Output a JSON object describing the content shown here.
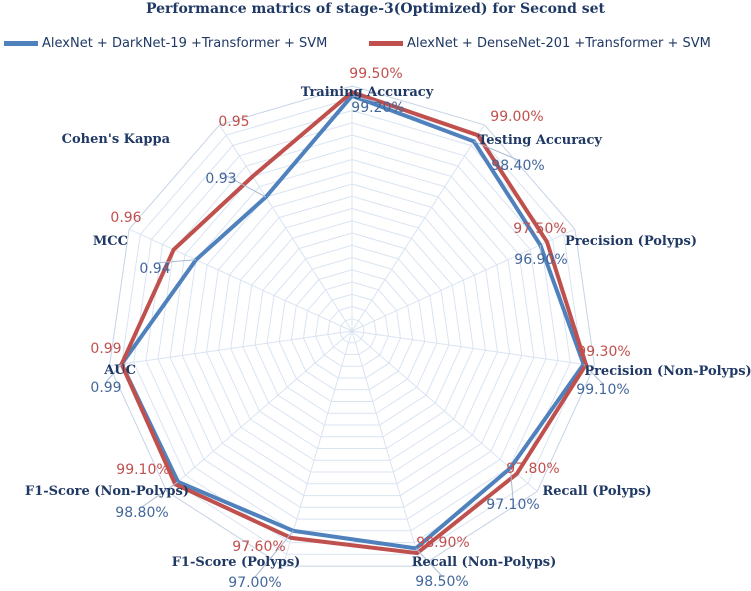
{
  "chart_data": {
    "type": "radar",
    "title": "Performance matrics of stage-3(Optimized) for Second set",
    "categories": [
      "Training Accuracy",
      "Testing Accuracy",
      "Precision (Polyps)",
      "Precision (Non-Polyps)",
      "Recall (Polyps)",
      "Recall (Non-Polyps)",
      "F1-Score (Polyps)",
      "F1-Score (Non-Polyps)",
      "AUC",
      "MCC",
      "Cohen's Kappa"
    ],
    "range": [
      0.8,
      1.0
    ],
    "grid_rings": 20,
    "legend_position": "top",
    "series": [
      {
        "name": "AlexNet + DarkNet-19 +Transformer + SVM",
        "color": "#4f81bd",
        "values": [
          0.992,
          0.984,
          0.969,
          0.991,
          0.971,
          0.985,
          0.97,
          0.988,
          0.99,
          0.94,
          0.93
        ],
        "labels": [
          "99.20%",
          "98.40%",
          "96.90%",
          "99.10%",
          "97.10%",
          "98.50%",
          "97.00%",
          "98.80%",
          "0.99",
          "0.94",
          "0.93"
        ]
      },
      {
        "name": "AlexNet + DenseNet-201 +Transformer + SVM",
        "color": "#c0504d",
        "values": [
          0.995,
          0.99,
          0.975,
          0.993,
          0.978,
          0.989,
          0.976,
          0.991,
          0.99,
          0.96,
          0.95
        ],
        "labels": [
          "99.50%",
          "99.00%",
          "97.50%",
          "99.30%",
          "97.80%",
          "98.90%",
          "97.60%",
          "99.10%",
          "0.99",
          "0.96",
          "0.95"
        ]
      }
    ]
  }
}
